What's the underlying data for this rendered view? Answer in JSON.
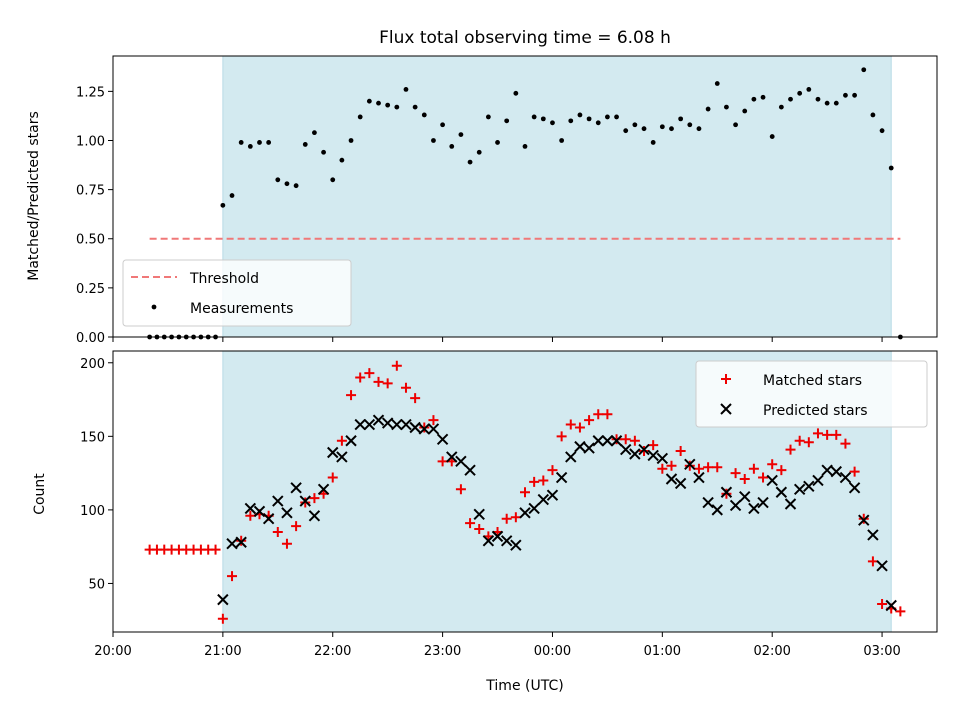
{
  "chart_data": [
    {
      "type": "scatter",
      "title": "Flux total observing time = 6.08 h",
      "xlabel": "",
      "ylabel": "Matched/Predicted stars",
      "xlim": [
        "20:00",
        "03:30"
      ],
      "ylim": [
        0,
        1.43
      ],
      "x_tick_labels": [],
      "y_ticks": [
        0.0,
        0.25,
        0.5,
        0.75,
        1.0,
        1.25
      ],
      "y_tick_labels": [
        "0.00",
        "0.25",
        "0.50",
        "0.75",
        "1.00",
        "1.25"
      ],
      "grid": false,
      "shaded_region": {
        "start": "21:00",
        "end": "03:05",
        "color": "#d3eaf0"
      },
      "threshold": {
        "name": "Threshold",
        "value": 0.5,
        "x_start": "20:20",
        "x_end": "03:10",
        "color": "#f07878",
        "style": "dashed"
      },
      "legend": {
        "position": "lower-left",
        "entries": [
          "Threshold",
          "Measurements"
        ]
      },
      "series": [
        {
          "name": "Measurements",
          "color": "#000000",
          "marker": "dot",
          "x": [
            "20:20",
            "20:24",
            "20:28",
            "20:32",
            "20:36",
            "20:40",
            "20:44",
            "20:48",
            "20:52",
            "20:56",
            "21:00",
            "21:05",
            "21:10",
            "21:15",
            "21:20",
            "21:25",
            "21:30",
            "21:35",
            "21:40",
            "21:45",
            "21:50",
            "21:55",
            "22:00",
            "22:05",
            "22:10",
            "22:15",
            "22:20",
            "22:25",
            "22:30",
            "22:35",
            "22:40",
            "22:45",
            "22:50",
            "22:55",
            "23:00",
            "23:05",
            "23:10",
            "23:15",
            "23:20",
            "23:25",
            "23:30",
            "23:35",
            "23:40",
            "23:45",
            "23:50",
            "23:55",
            "00:00",
            "00:05",
            "00:10",
            "00:15",
            "00:20",
            "00:25",
            "00:30",
            "00:35",
            "00:40",
            "00:45",
            "00:50",
            "00:55",
            "01:00",
            "01:05",
            "01:10",
            "01:15",
            "01:20",
            "01:25",
            "01:30",
            "01:35",
            "01:40",
            "01:45",
            "01:50",
            "01:55",
            "02:00",
            "02:05",
            "02:10",
            "02:15",
            "02:20",
            "02:25",
            "02:30",
            "02:35",
            "02:40",
            "02:45",
            "02:50",
            "02:55",
            "03:00",
            "03:05",
            "03:10"
          ],
          "y": [
            0,
            0,
            0,
            0,
            0,
            0,
            0,
            0,
            0,
            0,
            0.67,
            0.72,
            0.99,
            0.97,
            0.99,
            0.99,
            0.8,
            0.78,
            0.77,
            0.98,
            1.04,
            0.94,
            0.8,
            0.9,
            1.0,
            1.12,
            1.2,
            1.19,
            1.18,
            1.17,
            1.26,
            1.17,
            1.13,
            1.0,
            1.08,
            0.97,
            1.03,
            0.89,
            0.94,
            1.12,
            0.99,
            1.1,
            1.24,
            0.97,
            1.12,
            1.11,
            1.09,
            1.0,
            1.1,
            1.13,
            1.11,
            1.09,
            1.12,
            1.12,
            1.05,
            1.08,
            1.06,
            0.99,
            1.07,
            1.06,
            1.11,
            1.08,
            1.06,
            1.16,
            1.29,
            1.17,
            1.08,
            1.15,
            1.21,
            1.22,
            1.02,
            1.17,
            1.21,
            1.24,
            1.26,
            1.21,
            1.19,
            1.19,
            1.23,
            1.23,
            1.36,
            1.13,
            1.05,
            0.86,
            0
          ]
        }
      ]
    },
    {
      "type": "scatter",
      "title": "",
      "xlabel": "Time (UTC)",
      "ylabel": "Count",
      "xlim": [
        "20:00",
        "03:30"
      ],
      "ylim": [
        17,
        208
      ],
      "x_tick_labels": [
        "20:00",
        "21:00",
        "22:00",
        "23:00",
        "00:00",
        "01:00",
        "02:00",
        "03:00"
      ],
      "y_ticks": [
        50,
        100,
        150,
        200
      ],
      "y_tick_labels": [
        "50",
        "100",
        "150",
        "200"
      ],
      "grid": false,
      "shaded_region": {
        "start": "21:00",
        "end": "03:05",
        "color": "#d3eaf0"
      },
      "legend": {
        "position": "top-right",
        "entries": [
          "Matched stars",
          "Predicted stars"
        ]
      },
      "series": [
        {
          "name": "Matched stars",
          "color": "#ee0000",
          "marker": "plus",
          "x": [
            "20:20",
            "20:24",
            "20:28",
            "20:32",
            "20:36",
            "20:40",
            "20:44",
            "20:48",
            "20:52",
            "20:56",
            "21:00",
            "21:05",
            "21:10",
            "21:15",
            "21:20",
            "21:25",
            "21:30",
            "21:35",
            "21:40",
            "21:45",
            "21:50",
            "21:55",
            "22:00",
            "22:05",
            "22:10",
            "22:15",
            "22:20",
            "22:25",
            "22:30",
            "22:35",
            "22:40",
            "22:45",
            "22:50",
            "22:55",
            "23:00",
            "23:05",
            "23:10",
            "23:15",
            "23:20",
            "23:25",
            "23:30",
            "23:35",
            "23:40",
            "23:45",
            "23:50",
            "23:55",
            "00:00",
            "00:05",
            "00:10",
            "00:15",
            "00:20",
            "00:25",
            "00:30",
            "00:35",
            "00:40",
            "00:45",
            "00:50",
            "00:55",
            "01:00",
            "01:05",
            "01:10",
            "01:15",
            "01:20",
            "01:25",
            "01:30",
            "01:35",
            "01:40",
            "01:45",
            "01:50",
            "01:55",
            "02:00",
            "02:05",
            "02:10",
            "02:15",
            "02:20",
            "02:25",
            "02:30",
            "02:35",
            "02:40",
            "02:45",
            "02:50",
            "02:55",
            "03:00",
            "03:05",
            "03:10"
          ],
          "y": [
            73,
            73,
            73,
            73,
            73,
            73,
            73,
            73,
            73,
            73,
            26,
            55,
            79,
            96,
            97,
            96,
            85,
            77,
            89,
            105,
            108,
            111,
            122,
            147,
            178,
            190,
            193,
            187,
            186,
            198,
            183,
            176,
            156,
            161,
            133,
            133,
            114,
            91,
            87,
            82,
            85,
            94,
            95,
            112,
            119,
            120,
            127,
            150,
            158,
            156,
            161,
            165,
            165,
            148,
            148,
            147,
            140,
            144,
            128,
            130,
            140,
            130,
            128,
            129,
            129,
            111,
            125,
            121,
            128,
            122,
            131,
            127,
            141,
            147,
            146,
            152,
            151,
            151,
            145,
            126,
            94,
            65,
            36,
            33,
            31
          ]
        },
        {
          "name": "Predicted stars",
          "color": "#000000",
          "marker": "x",
          "x": [
            "21:00",
            "21:05",
            "21:10",
            "21:15",
            "21:20",
            "21:25",
            "21:30",
            "21:35",
            "21:40",
            "21:45",
            "21:50",
            "21:55",
            "22:00",
            "22:05",
            "22:10",
            "22:15",
            "22:20",
            "22:25",
            "22:30",
            "22:35",
            "22:40",
            "22:45",
            "22:50",
            "22:55",
            "23:00",
            "23:05",
            "23:10",
            "23:15",
            "23:20",
            "23:25",
            "23:30",
            "23:35",
            "23:40",
            "23:45",
            "23:50",
            "23:55",
            "00:00",
            "00:05",
            "00:10",
            "00:15",
            "00:20",
            "00:25",
            "00:30",
            "00:35",
            "00:40",
            "00:45",
            "00:50",
            "00:55",
            "01:00",
            "01:05",
            "01:10",
            "01:15",
            "01:20",
            "01:25",
            "01:30",
            "01:35",
            "01:40",
            "01:45",
            "01:50",
            "01:55",
            "02:00",
            "02:05",
            "02:10",
            "02:15",
            "02:20",
            "02:25",
            "02:30",
            "02:35",
            "02:40",
            "02:45",
            "02:50",
            "02:55",
            "03:00",
            "03:05"
          ],
          "y": [
            39,
            77,
            78,
            101,
            99,
            94,
            106,
            98,
            115,
            106,
            96,
            114,
            139,
            136,
            147,
            158,
            158,
            161,
            159,
            158,
            158,
            156,
            155,
            155,
            148,
            136,
            133,
            127,
            97,
            79,
            82,
            79,
            76,
            98,
            101,
            107,
            110,
            122,
            136,
            143,
            142,
            147,
            147,
            147,
            141,
            138,
            141,
            137,
            135,
            121,
            118,
            131,
            122,
            105,
            100,
            112,
            103,
            109,
            101,
            105,
            120,
            112,
            104,
            114,
            116,
            120,
            127,
            126,
            122,
            115,
            93,
            83,
            62,
            35
          ]
        }
      ]
    }
  ]
}
